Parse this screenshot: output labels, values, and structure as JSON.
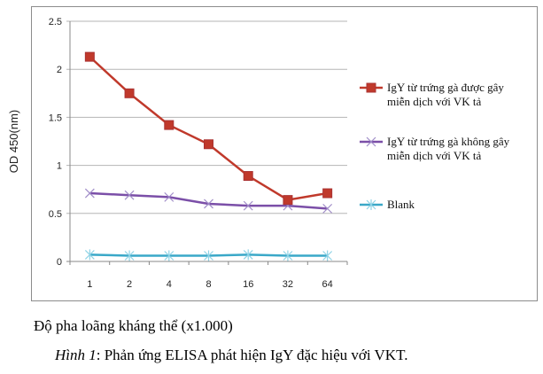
{
  "chart_data": {
    "type": "line",
    "categories": [
      "1",
      "2",
      "4",
      "8",
      "16",
      "32",
      "64"
    ],
    "ylabel": "OD 450(nm)",
    "xlabel": "Độ pha loãng kháng thể (x1.000)",
    "ylim": [
      0,
      2.5
    ],
    "yticks": [
      "0",
      "0.5",
      "1",
      "1.5",
      "2",
      "2.5"
    ],
    "grid": true,
    "legend_position": "right",
    "series": [
      {
        "name": "IgY từ trứng gà được gây miễn dịch với VK tả",
        "color": "#c0392b",
        "marker": "square",
        "values": [
          2.13,
          1.75,
          1.42,
          1.22,
          0.89,
          0.64,
          0.71
        ]
      },
      {
        "name": "IgY từ trứng gà không gây miễn dịch với VK tả",
        "color": "#7b4fa8",
        "marker": "x",
        "values": [
          0.71,
          0.69,
          0.67,
          0.6,
          0.58,
          0.58,
          0.55
        ]
      },
      {
        "name": "Blank",
        "color": "#3aa8c8",
        "marker": "star",
        "values": [
          0.07,
          0.06,
          0.06,
          0.06,
          0.07,
          0.06,
          0.06
        ]
      }
    ]
  },
  "caption": {
    "label": "Hình 1",
    "text": ": Phản ứng ELISA phát hiện IgY đặc hiệu với VKT."
  }
}
